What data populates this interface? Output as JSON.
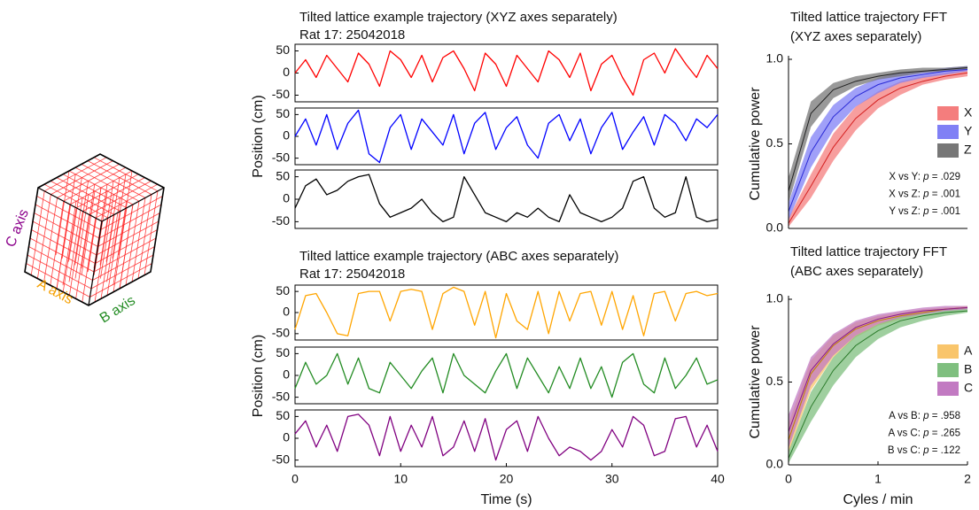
{
  "diagram": {
    "labels": [
      {
        "text": "C axis",
        "color": "#8b008b"
      },
      {
        "text": "A axis",
        "color": "#f5a000"
      },
      {
        "text": "B axis",
        "color": "#228b22"
      }
    ]
  },
  "chart_data": [
    {
      "type": "line",
      "title": "Tilted lattice example trajectory (XYZ axes separately)",
      "subtitle": "Rat 17: 25042018",
      "ylabel": "Position (cm)",
      "x": [
        0,
        1,
        2,
        3,
        4,
        5,
        6,
        7,
        8,
        9,
        10,
        11,
        12,
        13,
        14,
        15,
        16,
        17,
        18,
        19,
        20,
        21,
        22,
        23,
        24,
        25,
        26,
        27,
        28,
        29,
        30,
        31,
        32,
        33,
        34,
        35,
        36,
        37,
        38,
        39,
        40
      ],
      "xlim": [
        0,
        40
      ],
      "ylim": [
        -65,
        65
      ],
      "yticks": [
        -50,
        0,
        50
      ],
      "panels": [
        {
          "color": "#ff0000",
          "values": [
            0,
            30,
            -10,
            40,
            10,
            -20,
            45,
            20,
            -30,
            50,
            30,
            -10,
            40,
            -20,
            35,
            50,
            10,
            -40,
            45,
            20,
            -30,
            40,
            10,
            -20,
            50,
            30,
            -10,
            45,
            -40,
            20,
            40,
            -10,
            -50,
            30,
            45,
            0,
            55,
            20,
            -10,
            40,
            10
          ]
        },
        {
          "color": "#0000ff",
          "values": [
            0,
            40,
            -20,
            50,
            -30,
            30,
            60,
            -40,
            -60,
            20,
            50,
            -30,
            40,
            10,
            -20,
            50,
            -40,
            30,
            55,
            -30,
            20,
            45,
            -20,
            -50,
            30,
            50,
            -10,
            40,
            -40,
            20,
            55,
            -30,
            10,
            45,
            -20,
            50,
            30,
            -10,
            40,
            20,
            50
          ]
        },
        {
          "color": "#000000",
          "values": [
            -20,
            30,
            45,
            10,
            20,
            40,
            50,
            55,
            -10,
            -40,
            -30,
            -20,
            0,
            -30,
            -50,
            -40,
            50,
            10,
            -30,
            -40,
            -50,
            -30,
            -40,
            -20,
            -40,
            -50,
            10,
            -30,
            -40,
            -50,
            -40,
            -20,
            40,
            50,
            -20,
            -40,
            -30,
            50,
            -40,
            -50,
            -45
          ]
        }
      ]
    },
    {
      "type": "line",
      "title": "Tilted lattice example trajectory (ABC axes separately)",
      "subtitle": "Rat 17: 25042018",
      "ylabel": "Position (cm)",
      "xlabel": "Time (s)",
      "x": [
        0,
        1,
        2,
        3,
        4,
        5,
        6,
        7,
        8,
        9,
        10,
        11,
        12,
        13,
        14,
        15,
        16,
        17,
        18,
        19,
        20,
        21,
        22,
        23,
        24,
        25,
        26,
        27,
        28,
        29,
        30,
        31,
        32,
        33,
        34,
        35,
        36,
        37,
        38,
        39,
        40
      ],
      "xlim": [
        0,
        40
      ],
      "xticks": [
        0,
        10,
        20,
        30,
        40
      ],
      "ylim": [
        -65,
        65
      ],
      "yticks": [
        -50,
        0,
        50
      ],
      "panels": [
        {
          "color": "#ffa500",
          "values": [
            -40,
            40,
            45,
            0,
            -50,
            -55,
            45,
            50,
            50,
            -20,
            50,
            55,
            50,
            -40,
            45,
            60,
            50,
            -30,
            50,
            -60,
            45,
            -20,
            -40,
            50,
            -50,
            50,
            -20,
            45,
            50,
            -30,
            50,
            -40,
            40,
            -55,
            45,
            50,
            -20,
            45,
            50,
            40,
            45
          ]
        },
        {
          "color": "#228b22",
          "values": [
            -30,
            30,
            -20,
            0,
            50,
            -20,
            40,
            -30,
            -40,
            30,
            0,
            -30,
            10,
            40,
            -40,
            50,
            0,
            -20,
            -40,
            10,
            50,
            -30,
            40,
            0,
            -40,
            20,
            -30,
            40,
            -30,
            20,
            -50,
            30,
            50,
            -20,
            -40,
            40,
            -30,
            0,
            40,
            -20,
            -10
          ]
        },
        {
          "color": "#800080",
          "values": [
            10,
            40,
            -20,
            30,
            -30,
            50,
            55,
            30,
            -40,
            50,
            -30,
            30,
            -20,
            50,
            -40,
            -20,
            40,
            -30,
            45,
            -50,
            20,
            40,
            -30,
            50,
            0,
            -40,
            -20,
            -30,
            -50,
            -30,
            20,
            -20,
            50,
            30,
            -40,
            -30,
            45,
            50,
            -20,
            30,
            -30
          ]
        }
      ]
    },
    {
      "type": "area",
      "title": [
        "Tilted lattice trajectory FFT",
        "(XYZ axes separately)"
      ],
      "ylabel": "Cumulative power",
      "x": [
        0,
        0.25,
        0.5,
        0.75,
        1,
        1.25,
        1.5,
        1.75,
        2
      ],
      "xlim": [
        0,
        2
      ],
      "ylim": [
        0,
        1
      ],
      "yticks": [
        {
          "value": 0,
          "label": "0.0"
        },
        0.5,
        {
          "value": 1,
          "label": "1.0"
        }
      ],
      "series": [
        {
          "name": "X",
          "color": "#d42020",
          "band_color": "#f47d7d",
          "values": [
            0.03,
            0.25,
            0.48,
            0.65,
            0.76,
            0.83,
            0.87,
            0.9,
            0.92
          ],
          "lower": [
            0.01,
            0.18,
            0.4,
            0.58,
            0.71,
            0.79,
            0.85,
            0.88,
            0.9
          ],
          "upper": [
            0.06,
            0.32,
            0.56,
            0.72,
            0.81,
            0.87,
            0.9,
            0.92,
            0.94
          ]
        },
        {
          "name": "Y",
          "color": "#2a2ad6",
          "band_color": "#8080f5",
          "values": [
            0.1,
            0.45,
            0.66,
            0.78,
            0.85,
            0.89,
            0.91,
            0.93,
            0.94
          ],
          "lower": [
            0.05,
            0.36,
            0.58,
            0.72,
            0.8,
            0.86,
            0.89,
            0.91,
            0.93
          ],
          "upper": [
            0.15,
            0.54,
            0.73,
            0.83,
            0.89,
            0.92,
            0.93,
            0.95,
            0.96
          ]
        },
        {
          "name": "Z",
          "color": "#222222",
          "band_color": "#777777",
          "values": [
            0.22,
            0.68,
            0.82,
            0.87,
            0.9,
            0.92,
            0.93,
            0.94,
            0.95
          ],
          "lower": [
            0.15,
            0.6,
            0.77,
            0.84,
            0.88,
            0.9,
            0.92,
            0.93,
            0.94
          ],
          "upper": [
            0.3,
            0.75,
            0.86,
            0.9,
            0.92,
            0.94,
            0.95,
            0.95,
            0.96
          ]
        }
      ],
      "stats": [
        {
          "pair": "X vs Y: ",
          "symbol": "p",
          "value": " = .029"
        },
        {
          "pair": "X vs Z: ",
          "symbol": "p",
          "value": " = .001"
        },
        {
          "pair": "Y vs Z: ",
          "symbol": "p",
          "value": " = .001"
        }
      ]
    },
    {
      "type": "area",
      "title": [
        "Tilted lattice trajectory FFT",
        "(ABC axes separately)"
      ],
      "ylabel": "Cumulative power",
      "xlabel": "Cyles / min",
      "x": [
        0,
        0.25,
        0.5,
        0.75,
        1,
        1.25,
        1.5,
        1.75,
        2
      ],
      "xlim": [
        0,
        2
      ],
      "xticks": [
        0,
        1,
        2
      ],
      "ylim": [
        0,
        1
      ],
      "yticks": [
        {
          "value": 0,
          "label": "0.0"
        },
        0.5,
        {
          "value": 1,
          "label": "1.0"
        }
      ],
      "series": [
        {
          "name": "A",
          "color": "#c08000",
          "band_color": "#f9c56b",
          "values": [
            0.15,
            0.55,
            0.72,
            0.82,
            0.87,
            0.9,
            0.92,
            0.94,
            0.95
          ],
          "lower": [
            0.07,
            0.45,
            0.65,
            0.77,
            0.84,
            0.88,
            0.91,
            0.93,
            0.94
          ],
          "upper": [
            0.25,
            0.63,
            0.78,
            0.86,
            0.9,
            0.92,
            0.94,
            0.95,
            0.96
          ]
        },
        {
          "name": "B",
          "color": "#2a7a2a",
          "band_color": "#7fbf7f",
          "values": [
            0.04,
            0.35,
            0.57,
            0.72,
            0.81,
            0.87,
            0.9,
            0.92,
            0.93
          ],
          "lower": [
            0.01,
            0.26,
            0.48,
            0.65,
            0.76,
            0.83,
            0.87,
            0.9,
            0.92
          ],
          "upper": [
            0.08,
            0.44,
            0.65,
            0.78,
            0.85,
            0.9,
            0.92,
            0.94,
            0.95
          ]
        },
        {
          "name": "C",
          "color": "#8a1a8a",
          "band_color": "#c27ac2",
          "values": [
            0.2,
            0.57,
            0.73,
            0.83,
            0.88,
            0.91,
            0.93,
            0.94,
            0.95
          ],
          "lower": [
            0.1,
            0.48,
            0.66,
            0.78,
            0.85,
            0.89,
            0.91,
            0.93,
            0.94
          ],
          "upper": [
            0.3,
            0.65,
            0.79,
            0.87,
            0.91,
            0.93,
            0.95,
            0.96,
            0.96
          ]
        }
      ],
      "stats": [
        {
          "pair": "A vs B: ",
          "symbol": "p",
          "value": " = .958"
        },
        {
          "pair": "A vs C: ",
          "symbol": "p",
          "value": " = .265"
        },
        {
          "pair": "B vs C: ",
          "symbol": "p",
          "value": " = .122"
        }
      ]
    }
  ]
}
